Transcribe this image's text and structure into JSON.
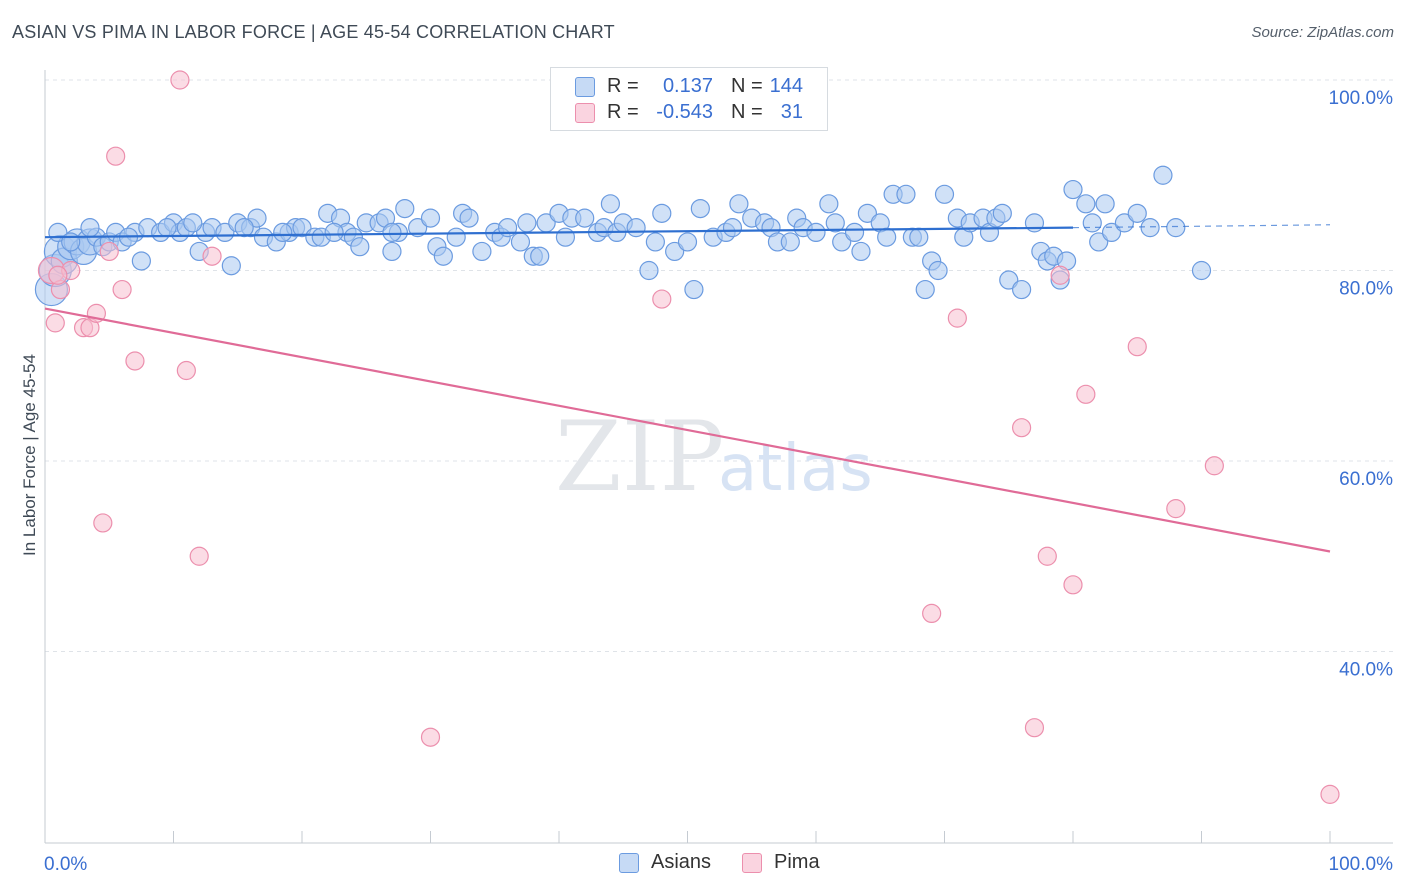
{
  "header": {
    "title": "ASIAN VS PIMA IN LABOR FORCE | AGE 45-54 CORRELATION CHART",
    "source": "Source: ZipAtlas.com"
  },
  "legend": {
    "r_label": "R =",
    "n_label": "N =",
    "asians": {
      "r": "0.137",
      "n": "144"
    },
    "pima": {
      "r": "-0.543",
      "n": "31"
    }
  },
  "bottom_legend": {
    "asians": "Asians",
    "pima": "Pima"
  },
  "colors": {
    "asians_fill": "#a9c8f0",
    "asians_stroke": "#6b9be0",
    "asians_line": "#2e6fd0",
    "pima_fill": "#f7bfd0",
    "pima_stroke": "#ec8fad",
    "pima_line": "#e06b97",
    "axis_text": "#3a6fd1",
    "grid": "#dfe3e8"
  },
  "chart_data": {
    "type": "scatter",
    "title": "ASIAN VS PIMA IN LABOR FORCE | AGE 45-54 CORRELATION CHART",
    "xlabel": "",
    "ylabel": "In Labor Force | Age 45-54",
    "xlim": [
      0,
      100
    ],
    "ylim": [
      18,
      102
    ],
    "x_tick_labels": [
      "0.0%",
      "100.0%"
    ],
    "y_ticks": [
      100,
      80,
      60,
      40
    ],
    "y_tick_labels": [
      "100.0%",
      "80.0%",
      "60.0%",
      "40.0%"
    ],
    "watermark": {
      "zip": "ZIP",
      "atlas": "atlas"
    },
    "series": [
      {
        "name": "Asians",
        "r": 0.137,
        "n": 144,
        "trend": {
          "x0": 0,
          "y0": 83.5,
          "x1": 80,
          "y1": 84.5,
          "dash_to_x": 100,
          "dash_to_y": 84.8
        },
        "points": [
          [
            0.5,
            78,
            3
          ],
          [
            0.8,
            80,
            3
          ],
          [
            1.2,
            82,
            3
          ],
          [
            1.5,
            81,
            2
          ],
          [
            2,
            82.5,
            2
          ],
          [
            2.5,
            83,
            2
          ],
          [
            3,
            82,
            2
          ],
          [
            3.5,
            83,
            2
          ],
          [
            4,
            83.5,
            1
          ],
          [
            4.5,
            82.5,
            1
          ],
          [
            5,
            83,
            1
          ],
          [
            5.5,
            84,
            1
          ],
          [
            6,
            83,
            1
          ],
          [
            7,
            84,
            1
          ],
          [
            7.5,
            81,
            1
          ],
          [
            8,
            84.5,
            1
          ],
          [
            9,
            84,
            1
          ],
          [
            10,
            85,
            1
          ],
          [
            10.5,
            84,
            1
          ],
          [
            11,
            84.5,
            1
          ],
          [
            12,
            82,
            1
          ],
          [
            12.5,
            84,
            1
          ],
          [
            13,
            84.5,
            1
          ],
          [
            14,
            84,
            1
          ],
          [
            14.5,
            80.5,
            1
          ],
          [
            15,
            85,
            1
          ],
          [
            16,
            84.5,
            1
          ],
          [
            16.5,
            85.5,
            1
          ],
          [
            17,
            83.5,
            1
          ],
          [
            18,
            83,
            1
          ],
          [
            19,
            84,
            1
          ],
          [
            19.5,
            84.5,
            1
          ],
          [
            20,
            84.5,
            1
          ],
          [
            21,
            83.5,
            1
          ],
          [
            21.5,
            83.5,
            1
          ],
          [
            22,
            86,
            1
          ],
          [
            23,
            85.5,
            1
          ],
          [
            23.5,
            84,
            1
          ],
          [
            24,
            83.5,
            1
          ],
          [
            24.5,
            82.5,
            1
          ],
          [
            25,
            85,
            1
          ],
          [
            26,
            85,
            1
          ],
          [
            26.5,
            85.5,
            1
          ],
          [
            27,
            82,
            1
          ],
          [
            27.5,
            84,
            1
          ],
          [
            28,
            86.5,
            1
          ],
          [
            29,
            84.5,
            1
          ],
          [
            30,
            85.5,
            1
          ],
          [
            30.5,
            82.5,
            1
          ],
          [
            31,
            81.5,
            1
          ],
          [
            32,
            83.5,
            1
          ],
          [
            32.5,
            86,
            1
          ],
          [
            33,
            85.5,
            1
          ],
          [
            34,
            82,
            1
          ],
          [
            35,
            84,
            1
          ],
          [
            35.5,
            83.5,
            1
          ],
          [
            36,
            84.5,
            1
          ],
          [
            37,
            83,
            1
          ],
          [
            37.5,
            85,
            1
          ],
          [
            38,
            81.5,
            1
          ],
          [
            38.5,
            81.5,
            1
          ],
          [
            39,
            85,
            1
          ],
          [
            40,
            86,
            1
          ],
          [
            40.5,
            83.5,
            1
          ],
          [
            41,
            85.5,
            1
          ],
          [
            42,
            85.5,
            1
          ],
          [
            43,
            84,
            1
          ],
          [
            43.5,
            84.5,
            1
          ],
          [
            44,
            87,
            1
          ],
          [
            44.5,
            84,
            1
          ],
          [
            45,
            85,
            1
          ],
          [
            46,
            84.5,
            1
          ],
          [
            47,
            80,
            1
          ],
          [
            47.5,
            83,
            1
          ],
          [
            48,
            86,
            1
          ],
          [
            49,
            82,
            1
          ],
          [
            50,
            83,
            1
          ],
          [
            50.5,
            78,
            1
          ],
          [
            51,
            86.5,
            1
          ],
          [
            52,
            83.5,
            1
          ],
          [
            53,
            84,
            1
          ],
          [
            53.5,
            84.5,
            1
          ],
          [
            54,
            87,
            1
          ],
          [
            55,
            85.5,
            1
          ],
          [
            56,
            85,
            1
          ],
          [
            56.5,
            84.5,
            1
          ],
          [
            57,
            83,
            1
          ],
          [
            58,
            83,
            1
          ],
          [
            58.5,
            85.5,
            1
          ],
          [
            59,
            84.5,
            1
          ],
          [
            60,
            84,
            1
          ],
          [
            61,
            87,
            1
          ],
          [
            61.5,
            85,
            1
          ],
          [
            62,
            83,
            1
          ],
          [
            63,
            84,
            1
          ],
          [
            63.5,
            82,
            1
          ],
          [
            64,
            86,
            1
          ],
          [
            65,
            85,
            1
          ],
          [
            65.5,
            83.5,
            1
          ],
          [
            66,
            88,
            1
          ],
          [
            67,
            88,
            1
          ],
          [
            67.5,
            83.5,
            1
          ],
          [
            68,
            83.5,
            1
          ],
          [
            68.5,
            78,
            1
          ],
          [
            69,
            81,
            1
          ],
          [
            69.5,
            80,
            1
          ],
          [
            70,
            88,
            1
          ],
          [
            71,
            85.5,
            1
          ],
          [
            71.5,
            83.5,
            1
          ],
          [
            72,
            85,
            1
          ],
          [
            73,
            85.5,
            1
          ],
          [
            73.5,
            84,
            1
          ],
          [
            74,
            85.5,
            1
          ],
          [
            74.5,
            86,
            1
          ],
          [
            75,
            79,
            1
          ],
          [
            76,
            78,
            1
          ],
          [
            77,
            85,
            1
          ],
          [
            77.5,
            82,
            1
          ],
          [
            78,
            81,
            1
          ],
          [
            78.5,
            81.5,
            1
          ],
          [
            79,
            79,
            1
          ],
          [
            79.5,
            81,
            1
          ],
          [
            80,
            88.5,
            1
          ],
          [
            81,
            87,
            1
          ],
          [
            81.5,
            85,
            1
          ],
          [
            82,
            83,
            1
          ],
          [
            82.5,
            87,
            1
          ],
          [
            83,
            84,
            1
          ],
          [
            84,
            85,
            1
          ],
          [
            85,
            86,
            1
          ],
          [
            86,
            84.5,
            1
          ],
          [
            87,
            90,
            1
          ],
          [
            88,
            84.5,
            1
          ],
          [
            90,
            80,
            1
          ],
          [
            1,
            84,
            1
          ],
          [
            2,
            83,
            1
          ],
          [
            3.5,
            84.5,
            1
          ],
          [
            6.5,
            83.5,
            1
          ],
          [
            9.5,
            84.5,
            1
          ],
          [
            11.5,
            85,
            1
          ],
          [
            15.5,
            84.5,
            1
          ],
          [
            18.5,
            84,
            1
          ],
          [
            22.5,
            84,
            1
          ],
          [
            27,
            84,
            1
          ]
        ]
      },
      {
        "name": "Pima",
        "r": -0.543,
        "n": 31,
        "trend": {
          "x0": 0,
          "y0": 76,
          "x1": 100,
          "y1": 50.5
        },
        "points": [
          [
            0.5,
            80,
            2
          ],
          [
            0.8,
            74.5,
            1
          ],
          [
            1.2,
            78,
            1
          ],
          [
            2,
            80,
            1
          ],
          [
            3,
            74,
            1
          ],
          [
            3.5,
            74,
            1
          ],
          [
            4,
            75.5,
            1
          ],
          [
            4.5,
            53.5,
            1
          ],
          [
            5,
            82,
            1
          ],
          [
            5.5,
            92,
            1
          ],
          [
            6,
            78,
            1
          ],
          [
            7,
            70.5,
            1
          ],
          [
            10.5,
            100,
            1
          ],
          [
            11,
            69.5,
            1
          ],
          [
            12,
            50,
            1
          ],
          [
            13,
            81.5,
            1
          ],
          [
            30,
            31,
            1
          ],
          [
            48,
            77,
            1
          ],
          [
            69,
            44,
            1
          ],
          [
            71,
            75,
            1
          ],
          [
            76,
            63.5,
            1
          ],
          [
            77,
            32,
            1
          ],
          [
            78,
            50,
            1
          ],
          [
            79,
            79.5,
            1
          ],
          [
            80,
            47,
            1
          ],
          [
            81,
            67,
            1
          ],
          [
            85,
            72,
            1
          ],
          [
            88,
            55,
            1
          ],
          [
            91,
            59.5,
            1
          ],
          [
            100,
            25,
            1
          ],
          [
            1,
            79.5,
            1
          ]
        ]
      }
    ]
  }
}
